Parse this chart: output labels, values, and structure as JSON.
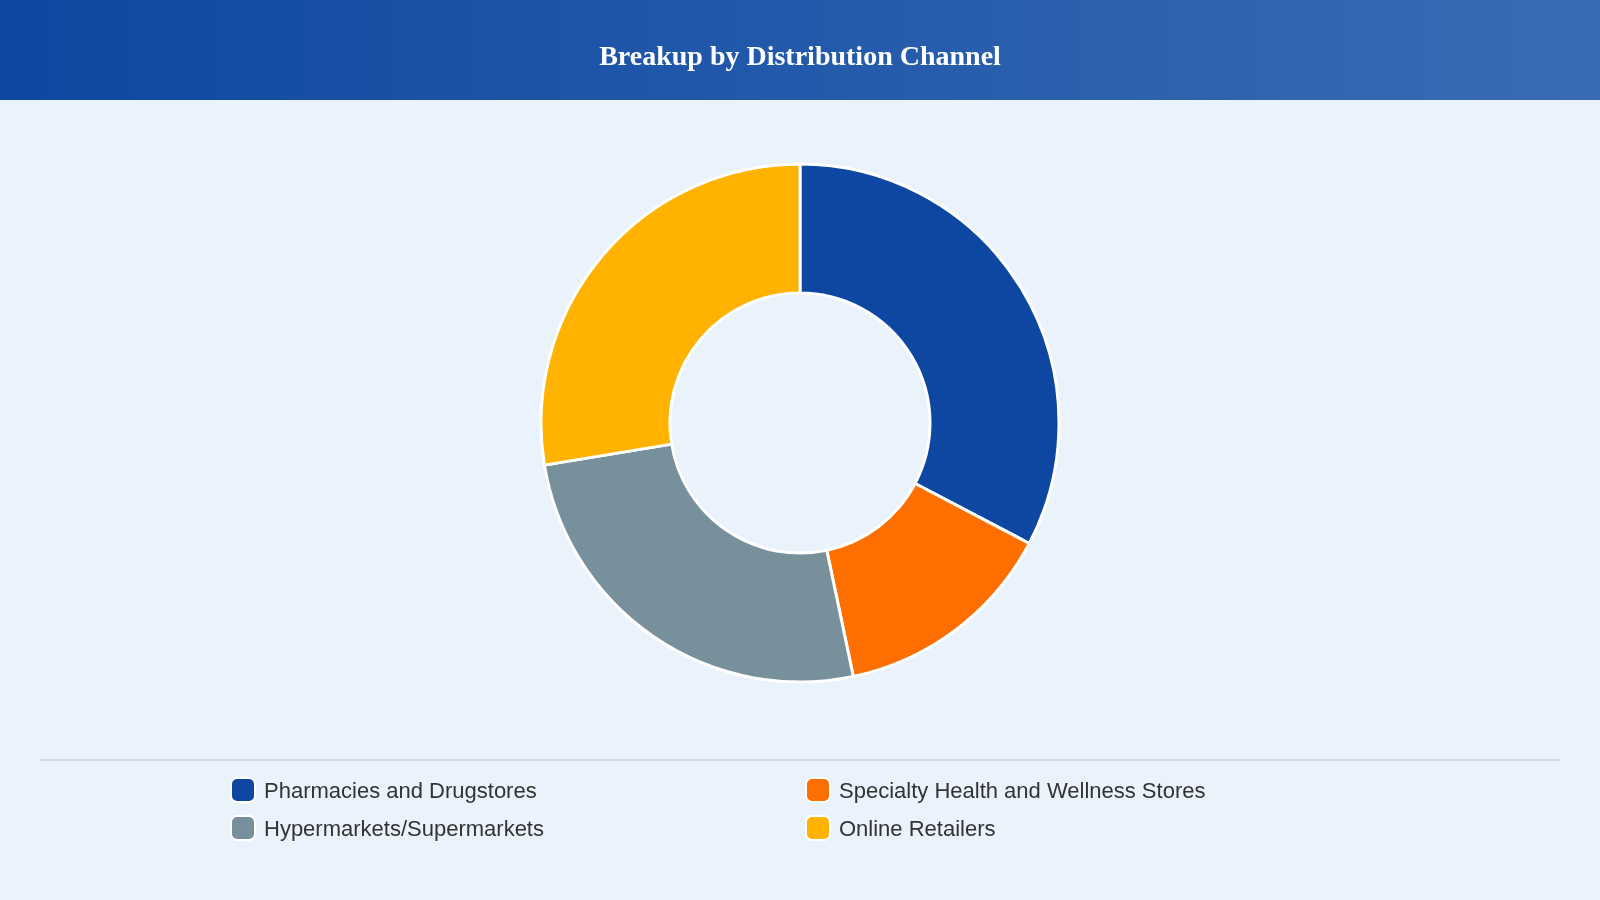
{
  "chart_data": {
    "type": "donut",
    "title": "Breakup by Distribution Channel",
    "categories": [
      "Pharmacies and Drugstores",
      "Specialty Health and Wellness Stores",
      "Hypermarkets/Supermarkets",
      "Online Retailers"
    ],
    "values": [
      32.7,
      14,
      25.7,
      27.6
    ],
    "colors": [
      "#0d47a1",
      "#ff6f00",
      "#78909c",
      "#ffb300"
    ],
    "legend": "bottom"
  }
}
